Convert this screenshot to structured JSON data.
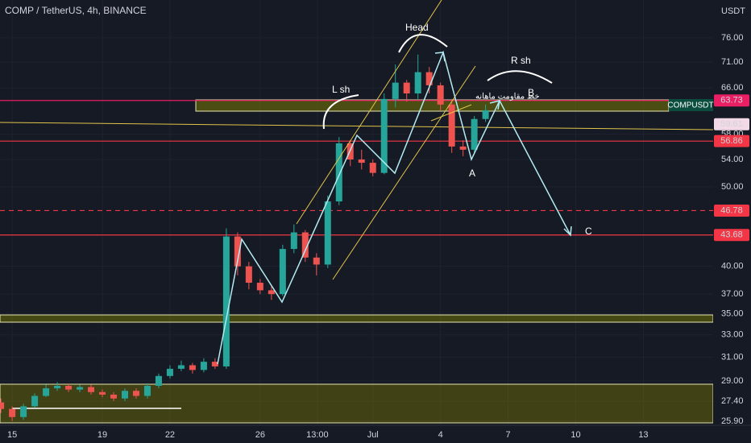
{
  "chart_data": {
    "type": "candlestick",
    "title": "COMP / TetherUS, 4h, BINANCE",
    "y_unit": "USDT",
    "log_scale": true,
    "ylim": [
      25.6,
      84.5
    ],
    "yticks": [
      {
        "value": 76,
        "label": "76.00"
      },
      {
        "value": 71,
        "label": "71.00"
      },
      {
        "value": 66,
        "label": "66.00"
      },
      {
        "value": 58,
        "label": "58.00"
      },
      {
        "value": 54,
        "label": "54.00"
      },
      {
        "value": 50,
        "label": "50.00"
      },
      {
        "value": 40,
        "label": "40.00"
      },
      {
        "value": 37,
        "label": "37.00"
      },
      {
        "value": 35,
        "label": "35.00"
      },
      {
        "value": 33,
        "label": "33.00"
      },
      {
        "value": 31,
        "label": "31.00"
      },
      {
        "value": 29,
        "label": "29.00"
      },
      {
        "value": 27.4,
        "label": "27.40"
      },
      {
        "value": 25.9,
        "label": "25.90"
      }
    ],
    "xlim": [
      14.46,
      45.2
    ],
    "xticks": [
      15,
      19,
      22,
      26,
      {
        "value": 28.54,
        "label": "13:00"
      },
      {
        "value": 31,
        "label": "Jul"
      },
      {
        "value": 34,
        "label": "4"
      },
      {
        "value": 37,
        "label": "7"
      },
      {
        "value": 40,
        "label": "10"
      },
      {
        "value": 43,
        "label": "13"
      }
    ],
    "up_color": "#26a69a",
    "down_color": "#ef5350",
    "candles": {
      "x": [
        14.5,
        15,
        15.5,
        16,
        16.5,
        17,
        17.5,
        18,
        18.5,
        19,
        19.5,
        20,
        20.5,
        21,
        21.5,
        22,
        22.5,
        23,
        23.5,
        24,
        24.5,
        25,
        25.5,
        26,
        26.5,
        27,
        27.5,
        28,
        28.5,
        29,
        29.5,
        30,
        30.5,
        31,
        31.5,
        32,
        32.5,
        33,
        33.5,
        34,
        34.5,
        35,
        35.5,
        36
      ],
      "open": [
        27.3,
        26.8,
        26.2,
        27.0,
        27.8,
        28.4,
        28.6,
        28.3,
        28.5,
        28.1,
        27.9,
        27.6,
        28.2,
        27.8,
        28.6,
        29.4,
        30.0,
        30.3,
        29.9,
        30.6,
        30.2,
        43.5,
        40.0,
        38.2,
        37.4,
        37.0,
        42.0,
        44.0,
        41.0,
        40.2,
        48.0,
        56.5,
        54.0,
        53.5,
        52.0,
        64.0,
        67.0,
        65.0,
        69.0,
        66.5,
        63.0,
        56.0,
        55.5,
        60.5
      ],
      "high": [
        27.6,
        27.0,
        27.2,
        28.0,
        28.7,
        28.9,
        28.8,
        28.7,
        28.7,
        28.3,
        28.1,
        28.4,
        28.4,
        28.8,
        29.6,
        30.3,
        30.7,
        30.5,
        30.9,
        30.9,
        44.5,
        44.0,
        40.5,
        38.6,
        37.8,
        42.5,
        45.0,
        44.3,
        41.5,
        48.8,
        57.5,
        57.0,
        55.5,
        54.0,
        65.0,
        70.5,
        67.5,
        72.5,
        70.0,
        67.0,
        64.0,
        57.0,
        61.0,
        63.0
      ],
      "low": [
        26.5,
        25.9,
        26.0,
        26.9,
        27.7,
        28.2,
        28.1,
        28.1,
        27.9,
        27.7,
        27.4,
        27.4,
        27.6,
        27.6,
        28.4,
        29.2,
        29.8,
        29.6,
        29.7,
        30.0,
        30.0,
        39.0,
        37.5,
        37.0,
        36.4,
        36.8,
        41.5,
        40.5,
        39.0,
        39.8,
        47.5,
        53.0,
        52.5,
        51.5,
        51.8,
        62.5,
        63.5,
        64.0,
        65.0,
        62.0,
        55.0,
        54.5,
        55.0,
        60.0
      ],
      "close": [
        26.8,
        26.2,
        27.0,
        27.8,
        28.4,
        28.6,
        28.3,
        28.5,
        28.1,
        27.9,
        27.6,
        28.2,
        27.8,
        28.6,
        29.4,
        30.0,
        30.3,
        29.9,
        30.6,
        30.2,
        43.5,
        40.0,
        38.2,
        37.4,
        37.0,
        42.0,
        44.0,
        41.0,
        40.2,
        48.0,
        56.5,
        54.0,
        53.5,
        52.0,
        64.0,
        67.0,
        65.0,
        69.0,
        66.5,
        63.0,
        56.0,
        55.5,
        60.5,
        62.0
      ]
    },
    "price_tags": [
      {
        "value": 63.73,
        "color": "#e91e63",
        "text_color": "#ffffff",
        "line": "solid"
      },
      {
        "value": 59.61,
        "color": "#f3d9e6",
        "text_color": "#131722",
        "line": "none"
      },
      {
        "value": 56.86,
        "color": "#f23645",
        "text_color": "#ffffff",
        "line": "solid"
      },
      {
        "value": 46.78,
        "color": "#f23645",
        "text_color": "#ffffff",
        "line": "dashed"
      },
      {
        "value": 43.68,
        "color": "#f23645",
        "text_color": "#ffffff",
        "line": "solid"
      }
    ],
    "symbol_tag": "COMPUSDT",
    "annotations": {
      "head": "Head",
      "left_shoulder": "L sh",
      "right_shoulder": "R sh",
      "a": "A",
      "b": "B",
      "c": "C",
      "resistance": "خط مقاومت ماهانه"
    }
  }
}
